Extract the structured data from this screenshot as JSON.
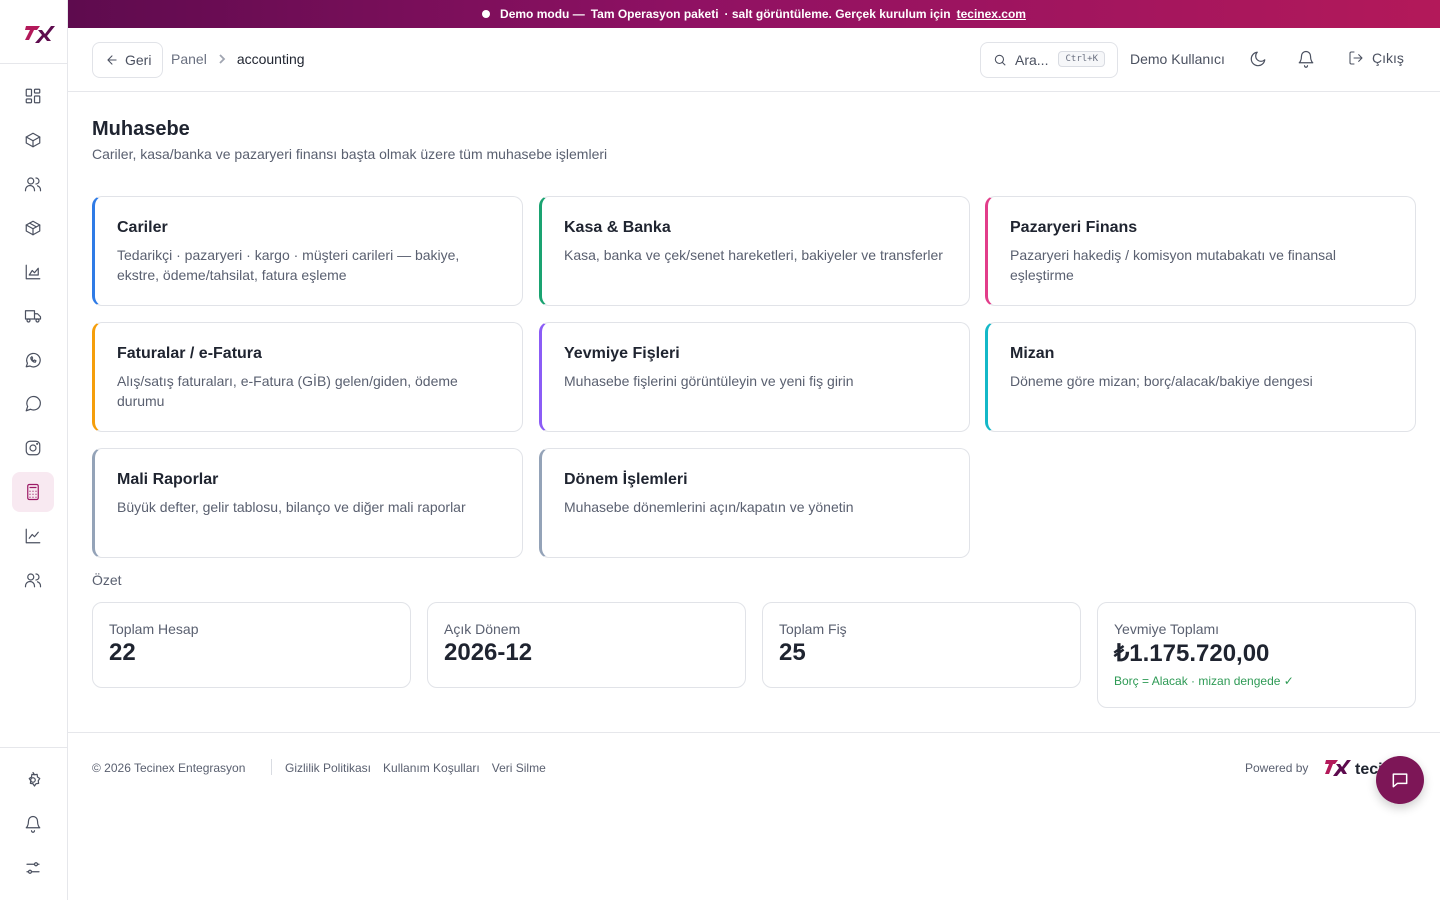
{
  "banner": {
    "mode": "Demo modu —",
    "package": "Tam Operasyon paketi",
    "note": "· salt görüntüleme. Gerçek kurulum için",
    "link": "tecinex.com"
  },
  "topbar": {
    "back_label": "Geri",
    "breadcrumb": [
      "Panel",
      "accounting"
    ],
    "search_placeholder": "Ara...",
    "search_shortcut": "Ctrl+K",
    "user_name": "Demo Kullanıcı",
    "logout_label": "Çıkış"
  },
  "sidebar": {
    "items": [
      {
        "icon": "dashboard-icon"
      },
      {
        "icon": "package-icon"
      },
      {
        "icon": "users-icon"
      },
      {
        "icon": "box-icon"
      },
      {
        "icon": "chart-area-icon"
      },
      {
        "icon": "truck-icon"
      },
      {
        "icon": "whatsapp-icon"
      },
      {
        "icon": "message-circle-icon"
      },
      {
        "icon": "instagram-icon"
      },
      {
        "icon": "calculator-icon",
        "active": true
      },
      {
        "icon": "line-chart-icon"
      },
      {
        "icon": "team-icon"
      }
    ],
    "bottom": [
      {
        "icon": "settings-icon"
      },
      {
        "icon": "bell-icon"
      },
      {
        "icon": "sliders-icon"
      }
    ]
  },
  "page": {
    "title": "Muhasebe",
    "subtitle": "Cariler, kasa/banka ve pazaryeri finansı başta olmak üzere tüm muhasebe işlemleri"
  },
  "cards": [
    {
      "title": "Cariler",
      "desc": "Tedarikçi · pazaryeri · kargo · müşteri carileri — bakiye, ekstre, ödeme/tahsilat, fatura eşleme",
      "color": "#2f7be6"
    },
    {
      "title": "Kasa & Banka",
      "desc": "Kasa, banka ve çek/senet hareketleri, bakiyeler ve transferler",
      "color": "#1aa371"
    },
    {
      "title": "Pazaryeri Finans",
      "desc": "Pazaryeri hakediş / komisyon mutabakatı ve finansal eşleştirme",
      "color": "#e23d8a"
    },
    {
      "title": "Faturalar / e-Fatura",
      "desc": "Alış/satış faturaları, e-Fatura (GİB) gelen/giden, ödeme durumu",
      "color": "#f59e0b"
    },
    {
      "title": "Yevmiye Fişleri",
      "desc": "Muhasebe fişlerini görüntüleyin ve yeni fiş girin",
      "color": "#8b5cf6"
    },
    {
      "title": "Mizan",
      "desc": "Döneme göre mizan; borç/alacak/bakiye dengesi",
      "color": "#14b8c8"
    },
    {
      "title": "Mali Raporlar",
      "desc": "Büyük defter, gelir tablosu, bilanço ve diğer mali raporlar",
      "color": "#94a3b8"
    },
    {
      "title": "Dönem İşlemleri",
      "desc": "Muhasebe dönemlerini açın/kapatın ve yönetin",
      "color": "#94a3b8"
    }
  ],
  "summary": {
    "label": "Özet",
    "stats": [
      {
        "label": "Toplam Hesap",
        "value": "22"
      },
      {
        "label": "Açık Dönem",
        "value": "2026-12"
      },
      {
        "label": "Toplam Fiş",
        "value": "25"
      },
      {
        "label": "Yevmiye Toplamı",
        "value": "₺1.175.720,00",
        "note": "Borç = Alacak · mizan dengede ✓"
      }
    ]
  },
  "footer": {
    "copyright": "© 2026 Tecinex Entegrasyon",
    "links": [
      "Gizlilik Politikası",
      "Kullanım Koşulları",
      "Veri Silme"
    ],
    "powered": "Powered by",
    "brand": "tecinex"
  }
}
